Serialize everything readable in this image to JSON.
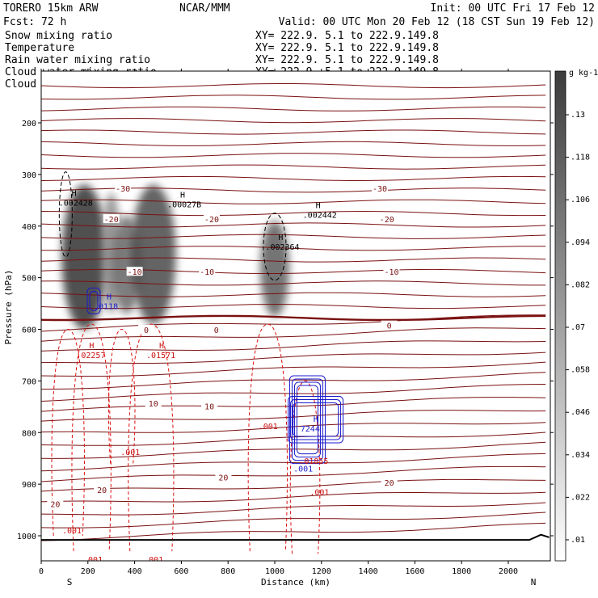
{
  "header": {
    "model": "TORERO   15km ARW",
    "org": "NCAR/MMM",
    "init": "Init: 00 UTC Fri 17 Feb 12",
    "fcst": "Fcst:    72 h",
    "valid": "Valid: 00 UTC Mon 20 Feb 12 (18 CST Sun 19 Feb 12)"
  },
  "legend": [
    {
      "name": "Snow mixing ratio",
      "color": "#000000"
    },
    {
      "name": "Temperature",
      "color": "#7a0000"
    },
    {
      "name": "Rain water mixing ratio",
      "color": "#dd0000"
    },
    {
      "name": "Cloud water mixing ratio",
      "color": "#0000cc"
    },
    {
      "name": "Cloud ice mixing ratio",
      "color": "#000000"
    }
  ],
  "xy_text": "XY= 222.9.   5.1 to 222.9.149.8",
  "chart_data": {
    "type": "cross-section",
    "xlabel": "Distance (km)",
    "ylabel": "Pressure (hPa)",
    "xlim": [
      0,
      2180
    ],
    "ylim": [
      1050,
      100
    ],
    "x_ticks": [
      0,
      200,
      400,
      600,
      800,
      1000,
      1200,
      1400,
      1600,
      1800,
      2000
    ],
    "y_ticks": [
      200,
      300,
      400,
      500,
      600,
      700,
      800,
      900,
      1000
    ],
    "x_ends": {
      "left": "S",
      "right": "N"
    },
    "colorbar": {
      "units": "g kg-1",
      "levels": [
        ".01",
        ".022",
        ".034",
        ".046",
        ".058",
        ".07",
        ".082",
        ".094",
        ".106",
        ".118",
        ".13"
      ]
    },
    "temperature_contours": [
      {
        "value": -30,
        "labels": [
          {
            "x": 350,
            "p": 328,
            "text": "-30"
          },
          {
            "x": 1450,
            "p": 328,
            "text": "-30"
          }
        ]
      },
      {
        "value": -20,
        "labels": [
          {
            "x": 300,
            "p": 388,
            "text": "-20"
          },
          {
            "x": 730,
            "p": 388,
            "text": "-20"
          },
          {
            "x": 1480,
            "p": 388,
            "text": "-20"
          }
        ]
      },
      {
        "value": -10,
        "labels": [
          {
            "x": 400,
            "p": 490,
            "text": "-10"
          },
          {
            "x": 710,
            "p": 490,
            "text": "-10"
          },
          {
            "x": 1500,
            "p": 490,
            "text": "-10"
          }
        ]
      },
      {
        "value": 0,
        "labels": [
          {
            "x": 450,
            "p": 602,
            "text": "0"
          },
          {
            "x": 750,
            "p": 602,
            "text": "0"
          },
          {
            "x": 1490,
            "p": 594,
            "text": "0"
          }
        ]
      },
      {
        "value": 10,
        "labels": [
          {
            "x": 480,
            "p": 745,
            "text": "10"
          },
          {
            "x": 720,
            "p": 750,
            "text": "10"
          }
        ]
      },
      {
        "value": 20,
        "labels": [
          {
            "x": 60,
            "p": 940,
            "text": "20"
          },
          {
            "x": 260,
            "p": 912,
            "text": "20"
          },
          {
            "x": 780,
            "p": 888,
            "text": "20"
          },
          {
            "x": 1490,
            "p": 898,
            "text": "20"
          }
        ]
      }
    ],
    "maxima_labels": [
      {
        "kind": "snow",
        "x": 75,
        "p": 345,
        "h": "H",
        "value": ".002428"
      },
      {
        "kind": "snow",
        "x": 540,
        "p": 348,
        "h": "H",
        "value": ".00027B"
      },
      {
        "kind": "snow",
        "x": 1120,
        "p": 368,
        "h": "H",
        "value": ".002442"
      },
      {
        "kind": "snow",
        "x": 960,
        "p": 430,
        "h": "H",
        "value": ".002364"
      },
      {
        "kind": "cloud",
        "x": 225,
        "p": 545,
        "h": "H",
        "value": ".0118"
      },
      {
        "kind": "rain",
        "x": 150,
        "p": 640,
        "h": "H",
        "value": ".02257"
      },
      {
        "kind": "rain",
        "x": 450,
        "p": 640,
        "h": "H",
        "value": ".01571"
      },
      {
        "kind": "rain",
        "x": 930,
        "p": 778,
        "h": "",
        "value": ".001"
      },
      {
        "kind": "cloud",
        "x": 1110,
        "p": 782,
        "h": "H",
        "value": "7244"
      },
      {
        "kind": "rain",
        "x": 1105,
        "p": 845,
        "h": "",
        "value": ".01855"
      },
      {
        "kind": "cloud",
        "x": 1080,
        "p": 860,
        "h": "",
        "value": ".001"
      },
      {
        "kind": "rain",
        "x": 340,
        "p": 828,
        "h": "",
        "value": ".001"
      },
      {
        "kind": "rain",
        "x": 1150,
        "p": 905,
        "h": "",
        "value": ".001"
      },
      {
        "kind": "rain",
        "x": 90,
        "p": 980,
        "h": "",
        "value": ".001"
      },
      {
        "kind": "rain",
        "x": 180,
        "p": 1036,
        "h": "",
        "value": ".001"
      },
      {
        "kind": "rain",
        "x": 440,
        "p": 1036,
        "h": "",
        "value": ".001"
      }
    ]
  }
}
